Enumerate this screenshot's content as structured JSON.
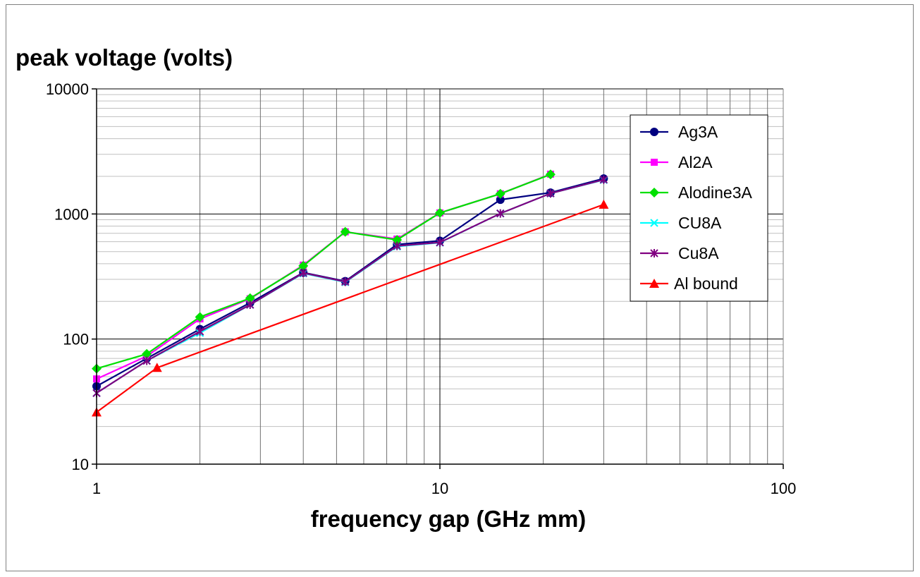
{
  "chart_data": {
    "type": "line",
    "scale": "log-log",
    "ylabel": "peak voltage (volts)",
    "xlabel": "frequency  gap (GHz mm)",
    "xlim": [
      1,
      100
    ],
    "ylim": [
      10,
      10000
    ],
    "x_ticks": [
      "1",
      "10",
      "100"
    ],
    "y_ticks": [
      "10",
      "100",
      "1000",
      "10000"
    ],
    "grid": true,
    "legend_position": "right",
    "series": [
      {
        "name": "Ag3A",
        "color": "#000080",
        "marker": "circle",
        "x": [
          1,
          1.4,
          2,
          2.8,
          4,
          5.3,
          7.5,
          10,
          15,
          21,
          30
        ],
        "y": [
          42,
          70,
          120,
          195,
          340,
          290,
          570,
          610,
          1300,
          1480,
          1920
        ]
      },
      {
        "name": "Al2A",
        "color": "#ff00ff",
        "marker": "square",
        "x": [
          1,
          1.4,
          2,
          2.8,
          4,
          5.3,
          7.5,
          10,
          15,
          21
        ],
        "y": [
          48,
          73,
          145,
          210,
          390,
          720,
          630,
          1020,
          1450,
          2080
        ]
      },
      {
        "name": "Alodine3A",
        "color": "#00e000",
        "marker": "diamond",
        "x": [
          1,
          1.4,
          2,
          2.8,
          4,
          5.3,
          7.5,
          10,
          15,
          21
        ],
        "y": [
          58,
          76,
          150,
          212,
          385,
          720,
          620,
          1020,
          1450,
          2070
        ]
      },
      {
        "name": "CU8A",
        "color": "#00ffff",
        "marker": "x",
        "x": [
          1,
          1.4,
          2,
          2.8,
          4,
          5.3,
          7.5,
          10,
          15,
          21,
          30
        ],
        "y": [
          37,
          67,
          112,
          188,
          335,
          285,
          550,
          590,
          1010,
          1460,
          1870
        ]
      },
      {
        "name": "Cu8A",
        "color": "#800080",
        "marker": "star",
        "x": [
          1,
          1.4,
          2,
          2.8,
          4,
          5.3,
          7.5,
          10,
          15,
          21,
          30
        ],
        "y": [
          37,
          67,
          115,
          188,
          338,
          287,
          555,
          592,
          1010,
          1460,
          1880
        ]
      },
      {
        "name": "Al bound",
        "color": "#ff0000",
        "marker": "triangle",
        "x": [
          1,
          1.5,
          30
        ],
        "y": [
          26,
          59,
          1190
        ]
      }
    ]
  }
}
